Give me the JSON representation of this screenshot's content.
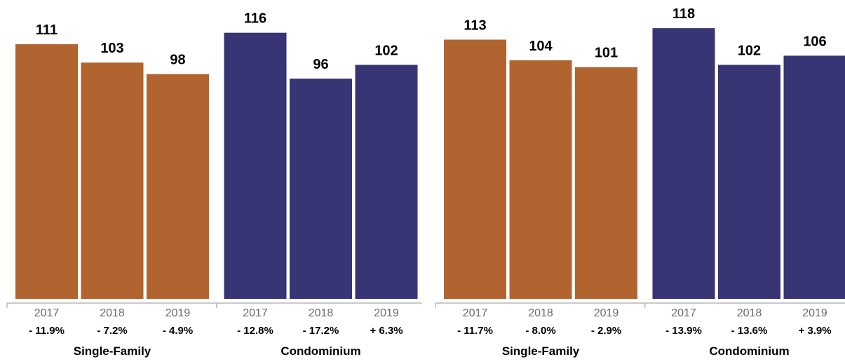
{
  "chart_data": [
    {
      "type": "bar",
      "categories": [
        "2017",
        "2018",
        "2019",
        "2017",
        "2018",
        "2019"
      ],
      "groups": [
        "Single-Family",
        "Condominium"
      ],
      "values": [
        111,
        103,
        98,
        116,
        96,
        102
      ],
      "changes": [
        "- 11.9%",
        "- 7.2%",
        "- 4.9%",
        "- 12.8%",
        "- 17.2%",
        "+ 6.3%"
      ],
      "bar_group": [
        "Single-Family",
        "Single-Family",
        "Single-Family",
        "Condominium",
        "Condominium",
        "Condominium"
      ],
      "title": "",
      "xlabel": "",
      "ylabel": "",
      "ylim": [
        0,
        130
      ],
      "grid": false
    },
    {
      "type": "bar",
      "categories": [
        "2017",
        "2018",
        "2019",
        "2017",
        "2018",
        "2019"
      ],
      "groups": [
        "Single-Family",
        "Condominium"
      ],
      "values": [
        113,
        104,
        101,
        118,
        102,
        106
      ],
      "changes": [
        "- 11.7%",
        "- 8.0%",
        "- 2.9%",
        "- 13.9%",
        "- 13.6%",
        "+ 3.9%"
      ],
      "bar_group": [
        "Single-Family",
        "Single-Family",
        "Single-Family",
        "Condominium",
        "Condominium",
        "Condominium"
      ],
      "title": "",
      "xlabel": "",
      "ylabel": "",
      "ylim": [
        0,
        130
      ],
      "grid": false
    }
  ],
  "colors": {
    "Single-Family": "#b26430",
    "Condominium": "#373573"
  }
}
